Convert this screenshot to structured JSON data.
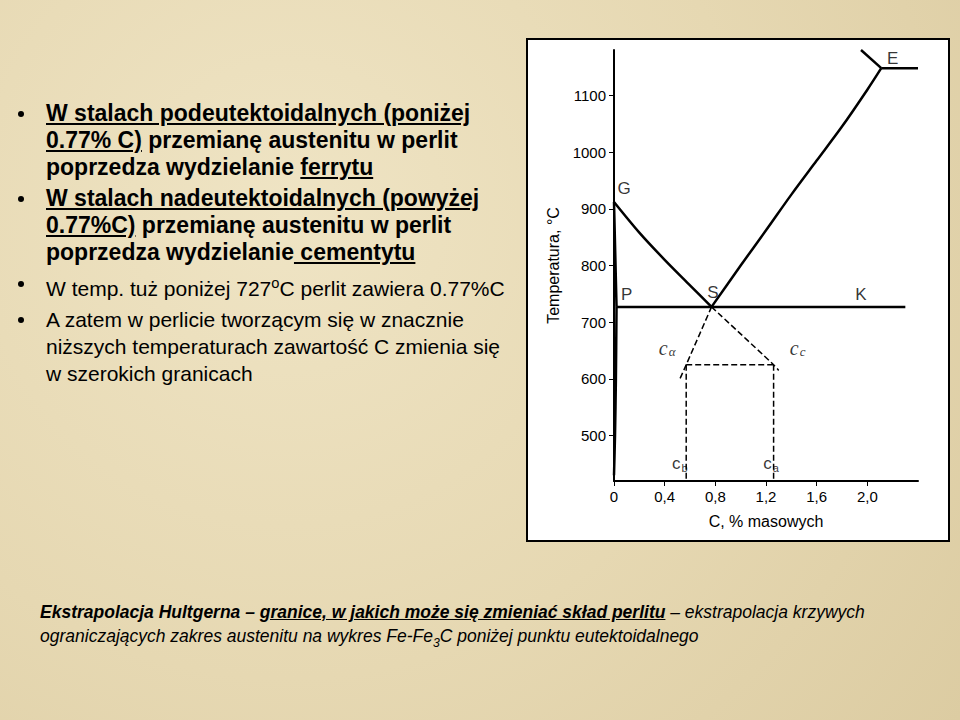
{
  "slide": {
    "bullets": [
      [
        {
          "text": "W stalach podeutektoidalnych (poniżej 0.77% C)",
          "bold": true,
          "underline": true
        },
        {
          "text": " przemianę austenitu w perlit poprzedza wydzielanie ",
          "bold": true
        },
        {
          "text": "ferrytu",
          "bold": true,
          "underline": true
        }
      ],
      [
        {
          "text": "W stalach nadeutektoidalnych (powyżej 0.77%C)",
          "bold": true,
          "underline": true
        },
        {
          "text": " przemianę austenitu w perlit poprzedza wydzielanie",
          "bold": true
        },
        {
          "text": " cementytu",
          "bold": true,
          "underline": true
        }
      ],
      [
        {
          "text": "W temp. tuż poniżej 727"
        },
        {
          "text": "o",
          "sup": true
        },
        {
          "text": "C perlit zawiera 0.77%C"
        }
      ],
      [
        {
          "text": "A zatem w perlicie tworzącym się w znacznie niższych temperaturach zawartość C zmienia się w szerokich granicach"
        }
      ]
    ],
    "footer": [
      {
        "text": "Ekstrapolacja Hultgerna",
        "bold": true
      },
      {
        "text": " – ",
        "bold": true
      },
      {
        "text": "granice, w jakich może się zmieniać skład perlitu",
        "bold": true,
        "underline": true
      },
      {
        "text": " – ekstrapolacja krzywych ograniczających zakres austenitu na wykres Fe-Fe"
      },
      {
        "text": "3",
        "sub": true
      },
      {
        "text": "C poniżej punktu eutektoidalnego"
      }
    ]
  },
  "chart_data": {
    "type": "line",
    "x_label": "C, % masowych",
    "y_label": "Temperatura, °C",
    "xlim": [
      0,
      2.4
    ],
    "ylim": [
      420,
      1180
    ],
    "xticks": [
      0,
      {
        "value": 0.4,
        "label": "0,4"
      },
      {
        "value": 0.8,
        "label": "0,8"
      },
      {
        "value": 1.2,
        "label": "1,2"
      },
      {
        "value": 1.6,
        "label": "1,6"
      },
      {
        "value": 2.0,
        "label": "2,0"
      }
    ],
    "yticks": [
      500,
      600,
      700,
      800,
      900,
      1000,
      1100
    ],
    "grid": false,
    "series": [
      {
        "x": [
          0,
          0.2,
          0.4,
          0.6,
          0.77
        ],
        "values": [
          912,
          858,
          810,
          765,
          727
        ],
        "line_style": "solid",
        "color": "#000000"
      },
      {
        "x": [
          0.77,
          1.0,
          1.2,
          1.4,
          1.6,
          1.8,
          2.0,
          2.11
        ],
        "values": [
          727,
          800,
          862,
          925,
          985,
          1045,
          1110,
          1148
        ],
        "line_style": "solid",
        "color": "#000000"
      },
      {
        "x": [
          0,
          0.01,
          0.02
        ],
        "values": [
          912,
          820,
          727
        ],
        "line_style": "solid",
        "color": "#000000"
      },
      {
        "x": [
          0.02,
          0.015,
          0.008,
          0
        ],
        "values": [
          727,
          600,
          500,
          430
        ],
        "line_style": "solid",
        "color": "#000000"
      },
      {
        "x": [
          0.02,
          2.3
        ],
        "values": [
          727,
          727
        ],
        "line_style": "solid",
        "color": "#000000"
      },
      {
        "x": [
          2.11,
          2.4
        ],
        "values": [
          1148,
          1148
        ],
        "line_style": "solid",
        "color": "#000000"
      },
      {
        "x": [
          1.95,
          2.11
        ],
        "values": [
          1180,
          1148
        ],
        "line_style": "solid",
        "color": "#000000"
      },
      {
        "x": [
          0.77,
          1.26,
          1.3
        ],
        "values": [
          727,
          625,
          615
        ],
        "line_style": "dashed",
        "color": "#000000"
      },
      {
        "x": [
          0.77,
          0.57,
          0.52
        ],
        "values": [
          727,
          625,
          600
        ],
        "line_style": "dashed",
        "color": "#000000"
      },
      {
        "x": [
          0.57,
          1.26
        ],
        "values": [
          625,
          625
        ],
        "line_style": "dashed",
        "color": "#000000"
      },
      {
        "x": [
          0.57,
          0.57
        ],
        "values": [
          625,
          420
        ],
        "line_style": "dashed",
        "color": "#000000"
      },
      {
        "x": [
          1.26,
          1.26
        ],
        "values": [
          625,
          420
        ],
        "line_style": "dashed",
        "color": "#000000"
      }
    ],
    "annotations": [
      {
        "text": "G",
        "x": 0.08,
        "y": 935
      },
      {
        "text": "P",
        "x": 0.1,
        "y": 748
      },
      {
        "text": "S",
        "x": 0.78,
        "y": 752
      },
      {
        "text": "K",
        "x": 1.95,
        "y": 748
      },
      {
        "text": "E",
        "x": 2.2,
        "y": 1165
      },
      {
        "text": "c",
        "sub": "b",
        "x": 0.52,
        "y": 450
      },
      {
        "text": "c",
        "sub": "a",
        "x": 1.24,
        "y": 450
      }
    ],
    "boxed_annotations": [
      {
        "text": "c",
        "sub": "α",
        "x": 0.42,
        "y": 655
      },
      {
        "text": "c",
        "sub": "c",
        "x": 1.45,
        "y": 655
      }
    ]
  }
}
